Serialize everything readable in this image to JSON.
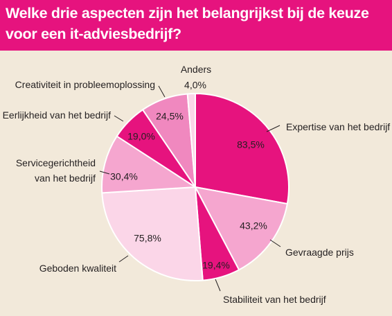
{
  "title": "Welke drie aspecten zijn het belangrijkst bij de keuze voor een it-adviesbedrijf?",
  "colors": {
    "banner": "#e6137e",
    "background": "#f2e9da",
    "slice_edge": "#ffffff",
    "leader": "#231f20"
  },
  "chart_data": {
    "type": "pie",
    "title": "Welke drie aspecten zijn het belangrijkst bij de keuze voor een it-adviesbedrijf?",
    "unit": "%",
    "slices": [
      {
        "name": "Expertise van het bedrijf",
        "value": 83.5,
        "value_label": "83,5%",
        "color": "#e6137e"
      },
      {
        "name": "Gevraagde prijs",
        "value": 43.2,
        "value_label": "43,2%",
        "color": "#f5a6cf"
      },
      {
        "name": "Stabiliteit van het bedrijf",
        "value": 19.4,
        "value_label": "19,4%",
        "color": "#e6137e"
      },
      {
        "name": "Geboden kwaliteit",
        "value": 75.8,
        "value_label": "75,8%",
        "color": "#fbd6e8"
      },
      {
        "name": "Servicegerichtheid van het bedrijf",
        "value": 30.4,
        "value_label": "30,4%",
        "color": "#f5a6cf"
      },
      {
        "name": "Eerlijkheid van het bedrijf",
        "value": 19.0,
        "value_label": "19,0%",
        "color": "#e6137e"
      },
      {
        "name": "Creativiteit in probleemoplossing",
        "value": 24.5,
        "value_label": "24,5%",
        "color": "#f088bf"
      },
      {
        "name": "Anders",
        "value": 4.0,
        "value_label": "4,0%",
        "color": "#fbd6e8"
      }
    ]
  }
}
